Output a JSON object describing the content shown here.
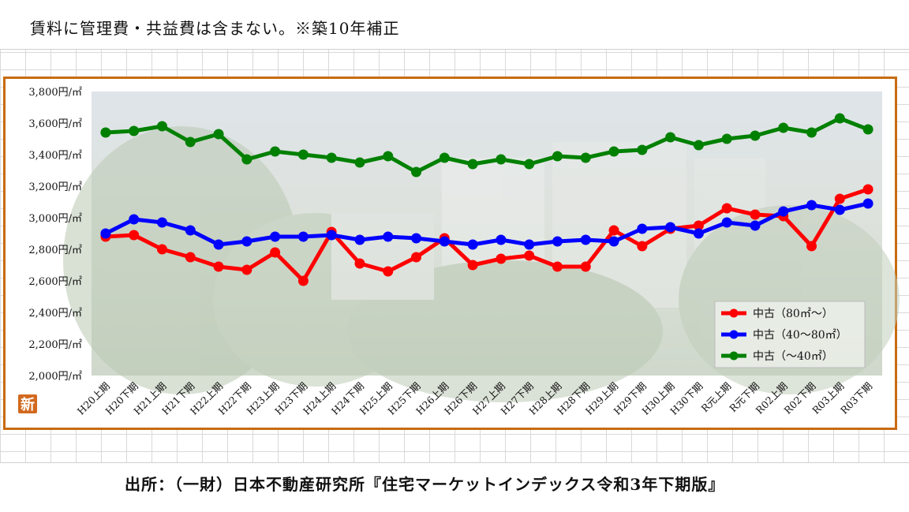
{
  "header": {
    "note": "賃料に管理費・共益費は含まない。※築10年補正"
  },
  "footer": {
    "source": "出所：（一財）日本不動産研究所『住宅マーケットインデックス令和3年下期版』"
  },
  "badge": {
    "text": "新",
    "color": "#d2691e"
  },
  "colors": {
    "frame": "#c86b10",
    "red": "#ff0000",
    "blue": "#0000ff",
    "green": "#008000"
  },
  "chart_data": {
    "type": "line",
    "title": "",
    "xlabel": "",
    "ylabel": "",
    "ylim": [
      2000,
      3800
    ],
    "y_ticks": [
      "2,000円/㎡",
      "2,200円/㎡",
      "2,400円/㎡",
      "2,600円/㎡",
      "2,800円/㎡",
      "3,000円/㎡",
      "3,200円/㎡",
      "3,400円/㎡",
      "3,600円/㎡",
      "3,800円/㎡"
    ],
    "y_tick_values": [
      2000,
      2200,
      2400,
      2600,
      2800,
      3000,
      3200,
      3400,
      3600,
      3800
    ],
    "categories": [
      "H20上期",
      "H20下期",
      "H21上期",
      "H21下期",
      "H22上期",
      "H22下期",
      "H23上期",
      "H23下期",
      "H24上期",
      "H24下期",
      "H25上期",
      "H25下期",
      "H26上期",
      "H26下期",
      "H27上期",
      "H27下期",
      "H28上期",
      "H28下期",
      "H29上期",
      "H29下期",
      "H30上期",
      "H30下期",
      "R元上期",
      "R元下期",
      "R02上期",
      "R02下期",
      "R03上期",
      "R03下期"
    ],
    "legend_position": "bottom-right",
    "grid": false,
    "series": [
      {
        "name": "中古（80㎡～）",
        "color": "#ff0000",
        "values": [
          2880,
          2890,
          2800,
          2750,
          2690,
          2670,
          2780,
          2600,
          2910,
          2710,
          2660,
          2750,
          2870,
          2700,
          2740,
          2760,
          2690,
          2690,
          2920,
          2820,
          2930,
          2950,
          3060,
          3020,
          3010,
          2820,
          3120,
          3180
        ]
      },
      {
        "name": "中古（40～80㎡）",
        "color": "#0000ff",
        "values": [
          2900,
          2990,
          2970,
          2920,
          2830,
          2850,
          2880,
          2880,
          2890,
          2860,
          2880,
          2870,
          2850,
          2830,
          2860,
          2830,
          2850,
          2860,
          2850,
          2930,
          2940,
          2900,
          2970,
          2950,
          3040,
          3080,
          3050,
          3090
        ]
      },
      {
        "name": "中古（～40㎡）",
        "color": "#008000",
        "values": [
          3540,
          3550,
          3580,
          3480,
          3530,
          3370,
          3420,
          3400,
          3380,
          3350,
          3390,
          3290,
          3380,
          3340,
          3370,
          3340,
          3390,
          3380,
          3420,
          3430,
          3510,
          3460,
          3500,
          3520,
          3570,
          3540,
          3630,
          3560
        ]
      }
    ]
  }
}
